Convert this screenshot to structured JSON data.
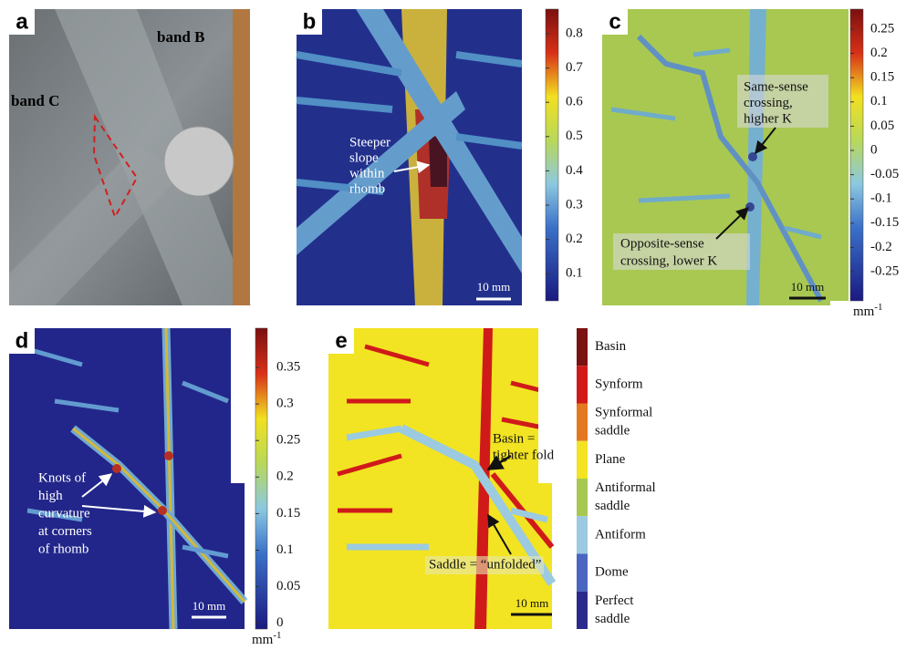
{
  "panels": [
    {
      "label": "a",
      "annotations": [
        "band B",
        "band C"
      ]
    },
    {
      "label": "b",
      "annotation_lines": [
        "Steeper",
        "slope",
        "within",
        "rhomb"
      ],
      "scale": "10 mm",
      "colorbar": [
        0.8,
        0.7,
        0.6,
        0.5,
        0.4,
        0.3,
        0.2,
        0.1
      ]
    },
    {
      "label": "c",
      "annotation_lines": [
        "Same-sense",
        "crossing,",
        "higher K"
      ],
      "annotation2_lines": [
        "Opposite-sense",
        "crossing, lower K"
      ],
      "scale": "10 mm",
      "colorbar": [
        0.25,
        0.2,
        0.15,
        0.1,
        0.05,
        0,
        -0.05,
        -0.1,
        -0.15,
        -0.2,
        -0.25
      ],
      "unit": {
        "base": "mm",
        "exponent": "-1"
      }
    },
    {
      "label": "d",
      "annotation_lines": [
        "Knots of",
        "high",
        "curvature",
        "at corners",
        "of rhomb"
      ],
      "scale": "10 mm",
      "colorbar": [
        0.35,
        0.3,
        0.25,
        0.2,
        0.15,
        0.1,
        0.05,
        0
      ],
      "unit": {
        "base": "mm",
        "exponent": "-1"
      }
    },
    {
      "label": "e",
      "annotation_lines": [
        "Basin =",
        "tighter fold"
      ],
      "annotation2": "Saddle = “unfolded”",
      "scale": "10 mm",
      "legend": [
        {
          "lines": [
            "Basin"
          ],
          "color": "#7a1212"
        },
        {
          "lines": [
            "Synform"
          ],
          "color": "#d01a1a"
        },
        {
          "lines": [
            "Synformal",
            "saddle"
          ],
          "color": "#e47820"
        },
        {
          "lines": [
            "Plane"
          ],
          "color": "#f2e422"
        },
        {
          "lines": [
            "Antiformal",
            "saddle"
          ],
          "color": "#a6c852"
        },
        {
          "lines": [
            "Antiform"
          ],
          "color": "#9ccae0"
        },
        {
          "lines": [
            "Dome"
          ],
          "color": "#4a66c0"
        },
        {
          "lines": [
            "Perfect",
            "saddle"
          ],
          "color": "#2a2a8c"
        }
      ]
    }
  ]
}
